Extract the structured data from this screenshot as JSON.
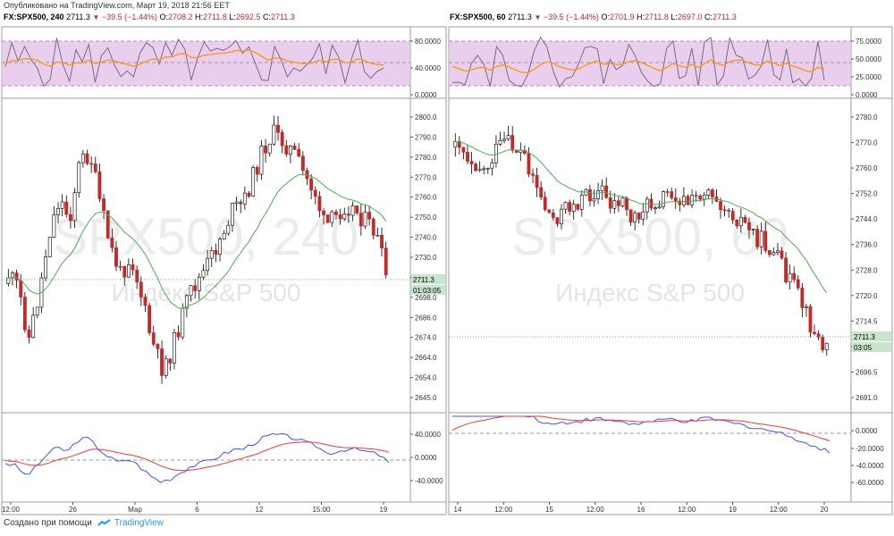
{
  "published_line": "Опубликовано на TradingView.com, Март 19, 2018 21:56 EET",
  "footer": {
    "created_with": "Создано при помощи",
    "brand": "TradingView"
  },
  "panels": [
    {
      "symbol": "FX:SPX500, 240",
      "last": "2711.3",
      "change": "−39.5 (−1.44%)",
      "o_label": "O:",
      "o": "2708.2",
      "h_label": "H:",
      "h": "2711.8",
      "l_label": "L:",
      "l": "2692.5",
      "c_label": "C:",
      "c": "2711.3",
      "watermark_main": "SPX500, 240",
      "watermark_sub": "Индекс S&P 500",
      "price_tag": "2711.3",
      "time_tag": "01:03:05",
      "price_axis": [
        "2800.0",
        "2790.0",
        "2780.0",
        "2770.0",
        "2760.0",
        "2750.0",
        "2740.0",
        "2730.0",
        "2720.0",
        "2698.0",
        "2686.0",
        "2674.0",
        "2664.0",
        "2654.0",
        "2645.0"
      ],
      "stoch_axis": [
        "80.0000",
        "40.0000",
        "0.0000"
      ],
      "macd_axis": [
        "40.0000",
        "0.0000",
        "-40.0000"
      ],
      "time_axis": [
        "12:00",
        "26",
        "Мар",
        "6",
        "12",
        "15:00",
        "19"
      ]
    },
    {
      "symbol": "FX:SPX500, 60",
      "last": "2711.3",
      "change": "−39.5 (−1.44%)",
      "o_label": "O:",
      "o": "2701.9",
      "h_label": "H:",
      "h": "2711.8",
      "l_label": "L:",
      "l": "2697.0",
      "c_label": "C:",
      "c": "2711.3",
      "watermark_main": "SPX500, 60",
      "watermark_sub": "Индекс S&P 500",
      "price_tag": "2711.3",
      "time_tag": "03:05",
      "price_axis": [
        "2780.0",
        "2770.0",
        "2760.0",
        "2752.0",
        "2744.0",
        "2736.0",
        "2728.0",
        "2720.0",
        "2714.5",
        "2702.5",
        "2696.5",
        "2691.0"
      ],
      "stoch_axis": [
        "75.0000",
        "50.0000",
        "25.0000",
        "0.0000"
      ],
      "macd_axis": [
        "0.0000",
        "-20.0000",
        "-40.0000",
        "-60.0000"
      ],
      "time_axis": [
        "14",
        "12:00",
        "15",
        "12:00",
        "16",
        "12:00",
        "19",
        "12:00",
        "20"
      ]
    }
  ],
  "colors": {
    "up_candle": "#ffffff",
    "down_candle": "#c62828",
    "wick": "#000000",
    "ma_line": "#4caf50",
    "stoch_k": "#7a6a8a",
    "stoch_d": "#ff9800",
    "stoch_band": "#e1bee7",
    "macd_line": "#3f51ff",
    "signal_line": "#ff3333",
    "price_tag_bg": "#c8e6c9"
  }
}
